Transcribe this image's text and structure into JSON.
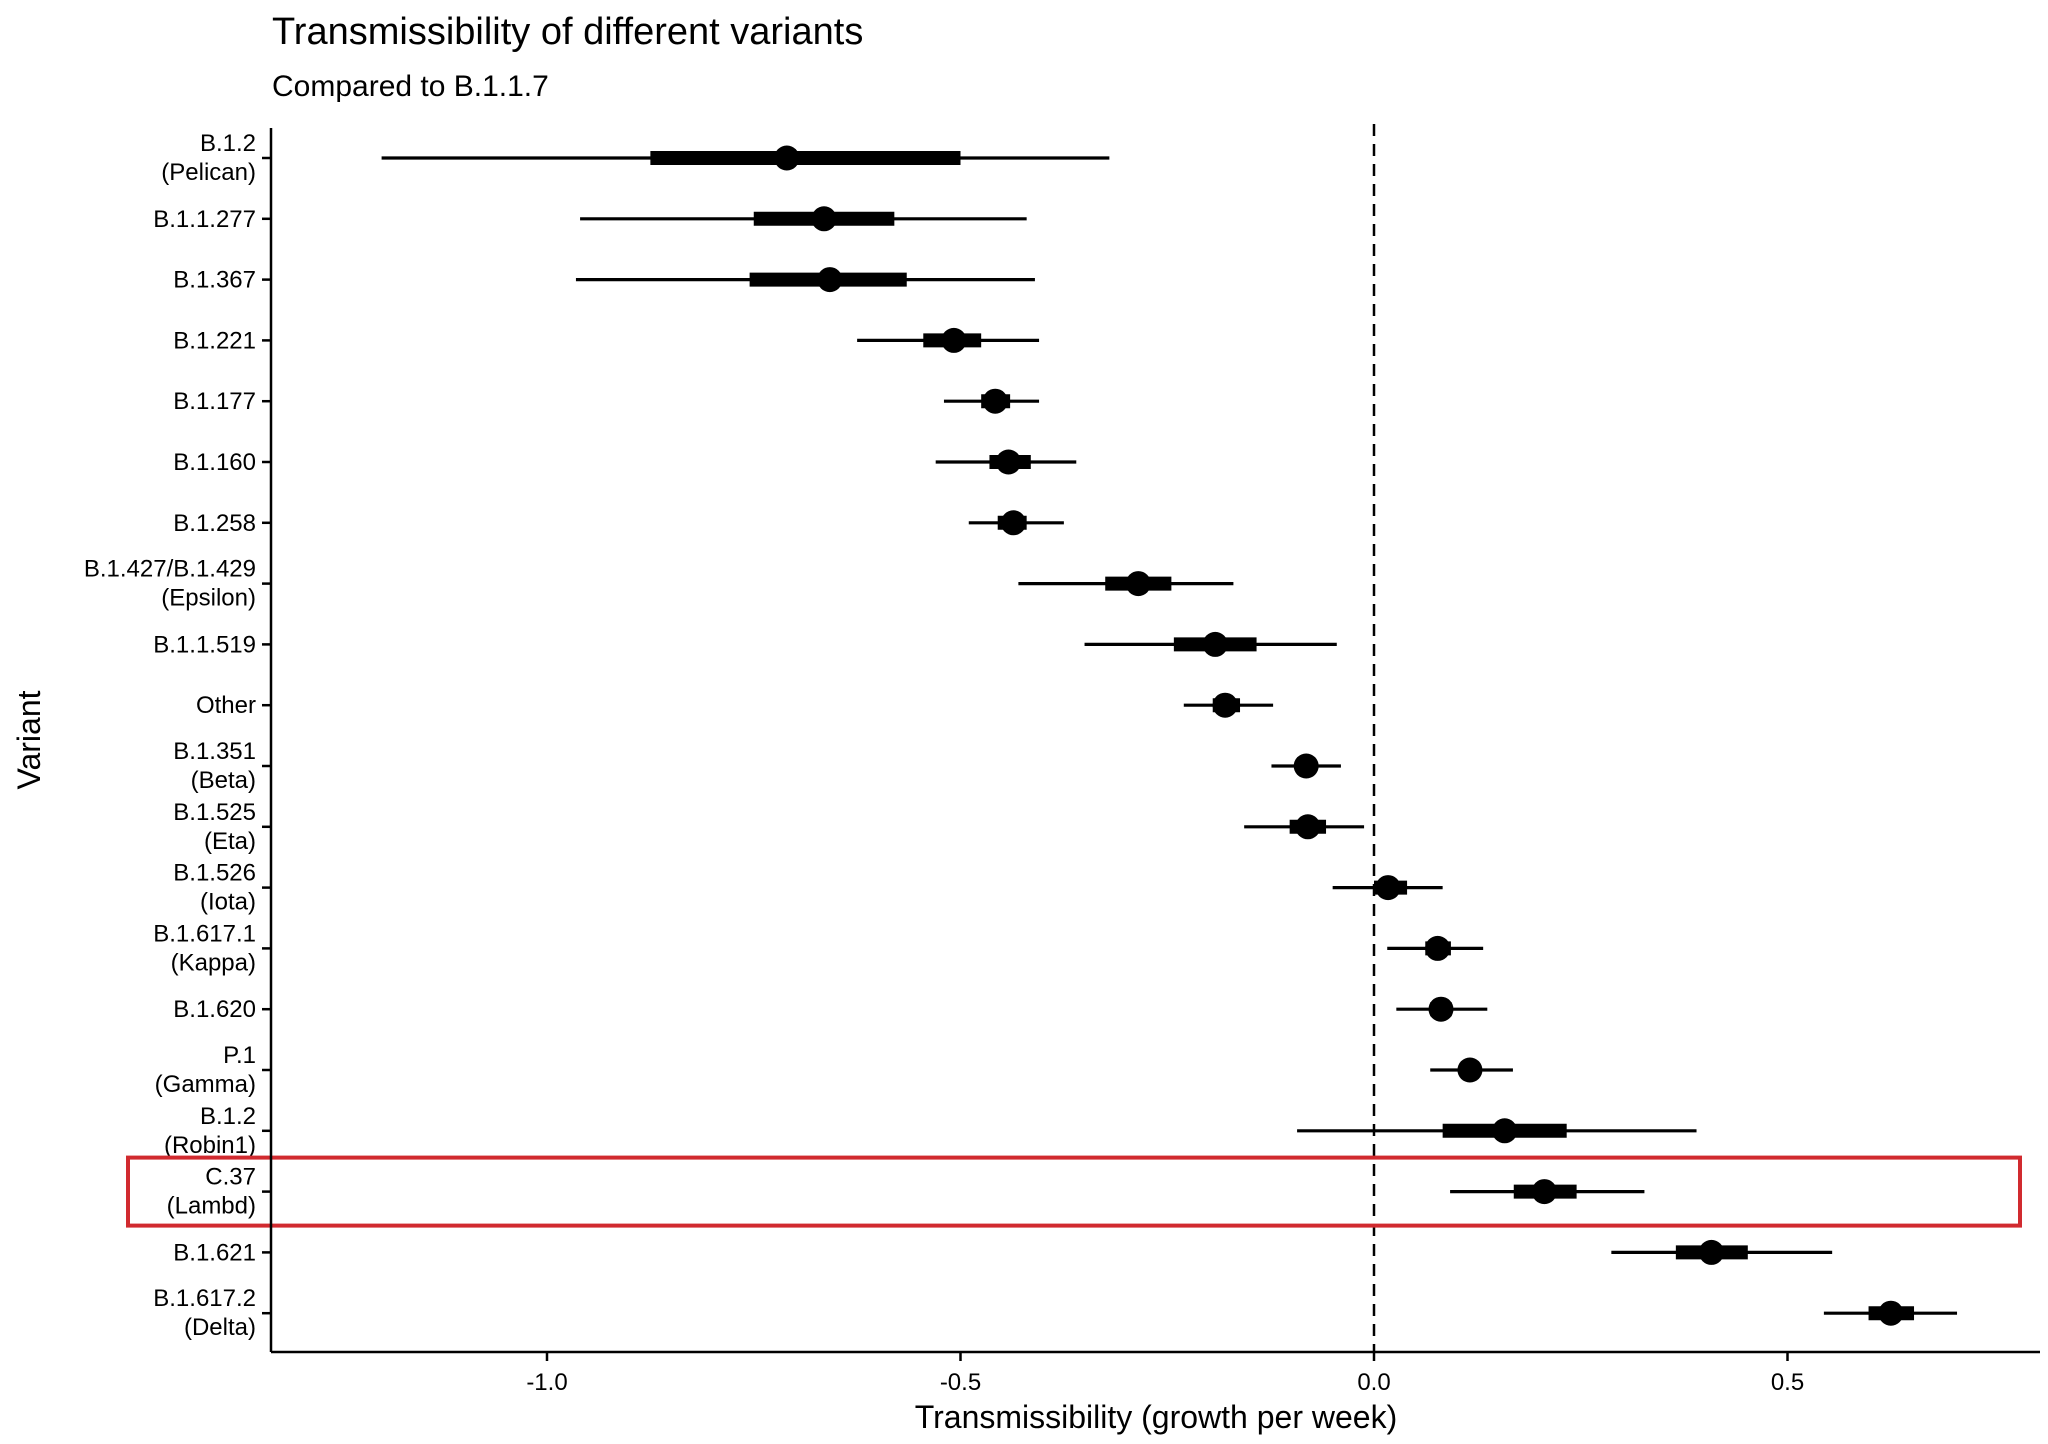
{
  "chart_data": {
    "type": "forest",
    "title": "Transmissibility of different variants",
    "subtitle": "Compared to B.1.1.7",
    "xlabel": "Transmissibility (growth per week)",
    "ylabel": "Variant",
    "xlim": [
      -1.33,
      0.8
    ],
    "xticks": [
      -1.0,
      -0.5,
      0.0,
      0.5
    ],
    "xtick_labels": [
      "-1.0",
      "-0.5",
      "0.0",
      "0.5"
    ],
    "reference_line": 0.0,
    "grid": false,
    "highlight_label": "C.37\n(Lambd)",
    "highlight_color": "#d12a2f",
    "point_color": "#000000",
    "variants": [
      {
        "label": "B.1.2\n(Pelican)",
        "estimate": -0.71,
        "inner": [
          -0.875,
          -0.5
        ],
        "outer": [
          -1.2,
          -0.32
        ]
      },
      {
        "label": "B.1.1.277",
        "estimate": -0.665,
        "inner": [
          -0.75,
          -0.58
        ],
        "outer": [
          -0.96,
          -0.42
        ]
      },
      {
        "label": "B.1.367",
        "estimate": -0.658,
        "inner": [
          -0.755,
          -0.565
        ],
        "outer": [
          -0.965,
          -0.41
        ]
      },
      {
        "label": "B.1.221",
        "estimate": -0.508,
        "inner": [
          -0.545,
          -0.475
        ],
        "outer": [
          -0.625,
          -0.405
        ]
      },
      {
        "label": "B.1.177",
        "estimate": -0.458,
        "inner": [
          -0.475,
          -0.44
        ],
        "outer": [
          -0.52,
          -0.405
        ]
      },
      {
        "label": "B.1.160",
        "estimate": -0.442,
        "inner": [
          -0.465,
          -0.415
        ],
        "outer": [
          -0.53,
          -0.36
        ]
      },
      {
        "label": "B.1.258",
        "estimate": -0.436,
        "inner": [
          -0.455,
          -0.42
        ],
        "outer": [
          -0.49,
          -0.375
        ]
      },
      {
        "label": "B.1.427/B.1.429\n(Epsilon)",
        "estimate": -0.285,
        "inner": [
          -0.325,
          -0.245
        ],
        "outer": [
          -0.43,
          -0.17
        ]
      },
      {
        "label": "B.1.1.519",
        "estimate": -0.192,
        "inner": [
          -0.242,
          -0.142
        ],
        "outer": [
          -0.35,
          -0.045
        ]
      },
      {
        "label": "Other",
        "estimate": -0.18,
        "inner": [
          -0.195,
          -0.162
        ],
        "outer": [
          -0.23,
          -0.122
        ]
      },
      {
        "label": "B.1.351\n(Beta)",
        "estimate": -0.082,
        "inner": [
          -0.092,
          -0.072
        ],
        "outer": [
          -0.124,
          -0.04
        ]
      },
      {
        "label": "B.1.525\n(Eta)",
        "estimate": -0.08,
        "inner": [
          -0.102,
          -0.058
        ],
        "outer": [
          -0.157,
          -0.012
        ]
      },
      {
        "label": "B.1.526\n(Iota)",
        "estimate": 0.017,
        "inner": [
          0.0,
          0.04
        ],
        "outer": [
          -0.05,
          0.083
        ]
      },
      {
        "label": "B.1.617.1\n(Kappa)",
        "estimate": 0.077,
        "inner": [
          0.062,
          0.093
        ],
        "outer": [
          0.016,
          0.132
        ]
      },
      {
        "label": "B.1.620",
        "estimate": 0.081,
        "inner": [
          0.068,
          0.094
        ],
        "outer": [
          0.027,
          0.137
        ]
      },
      {
        "label": "P.1\n(Gamma)",
        "estimate": 0.116,
        "inner": [
          0.104,
          0.128
        ],
        "outer": [
          0.068,
          0.168
        ]
      },
      {
        "label": "B.1.2\n(Robin1)",
        "estimate": 0.158,
        "inner": [
          0.083,
          0.233
        ],
        "outer": [
          -0.093,
          0.39
        ]
      },
      {
        "label": "C.37\n(Lambd)",
        "estimate": 0.206,
        "inner": [
          0.169,
          0.245
        ],
        "outer": [
          0.092,
          0.327
        ]
      },
      {
        "label": "B.1.621",
        "estimate": 0.408,
        "inner": [
          0.365,
          0.452
        ],
        "outer": [
          0.287,
          0.554
        ]
      },
      {
        "label": "B.1.617.2\n(Delta)",
        "estimate": 0.625,
        "inner": [
          0.598,
          0.653
        ],
        "outer": [
          0.544,
          0.705
        ]
      }
    ]
  }
}
